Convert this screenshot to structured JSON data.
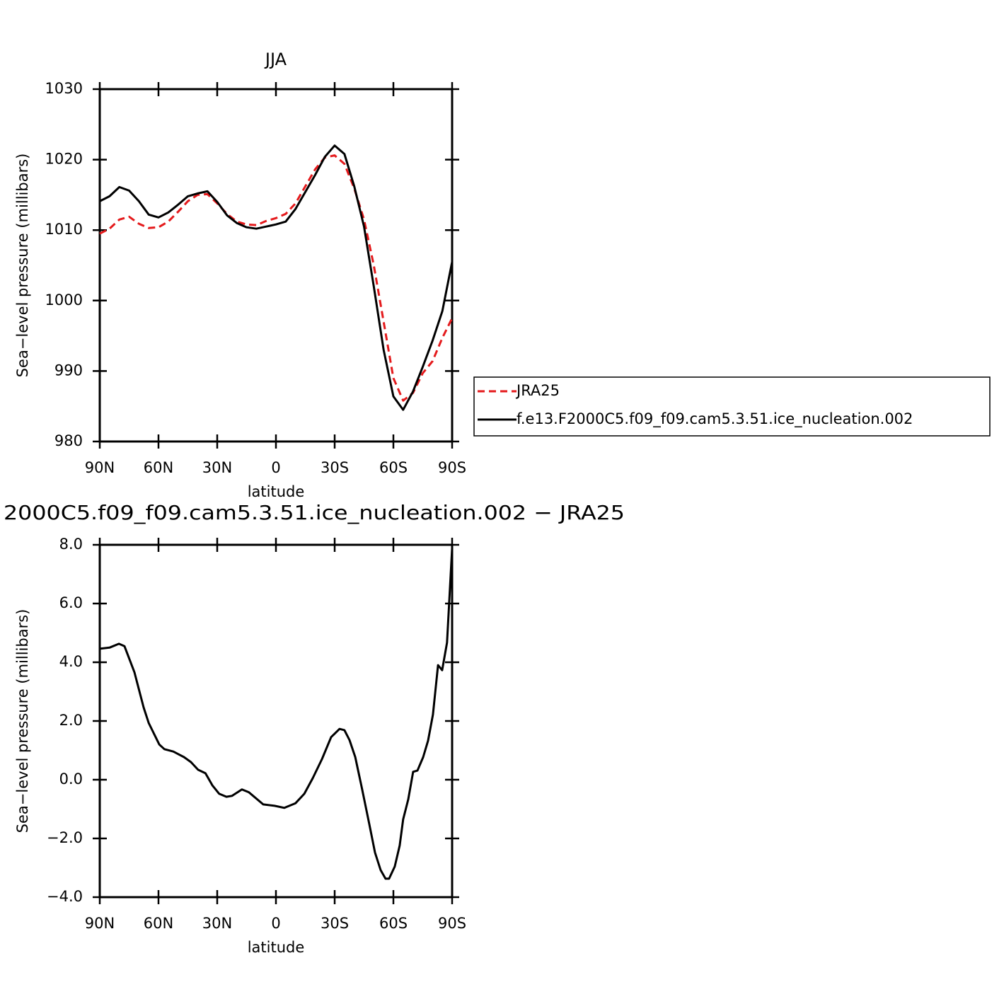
{
  "chart_data": [
    {
      "type": "line",
      "title": "JJA",
      "x_label": "latitude",
      "y_label": "Sea−level pressure (millibars)",
      "x": [
        90,
        85,
        80,
        75,
        70,
        65,
        60,
        55,
        50,
        45,
        40,
        35,
        30,
        25,
        20,
        15,
        10,
        5,
        0,
        -5,
        -10,
        -15,
        -20,
        -25,
        -30,
        -35,
        -40,
        -45,
        -50,
        -55,
        -60,
        -65,
        -70,
        -75,
        -80,
        -85,
        -90
      ],
      "series": [
        {
          "name": "JRA25",
          "color": "#e41a1c",
          "style": "dashed",
          "values": [
            1009.5,
            1010.2,
            1011.5,
            1011.9,
            1010.9,
            1010.3,
            1010.4,
            1011.2,
            1012.6,
            1014.1,
            1015.0,
            1015.1,
            1013.8,
            1012.3,
            1011.2,
            1010.8,
            1010.7,
            1011.3,
            1011.7,
            1012.3,
            1013.8,
            1016.2,
            1018.6,
            1020.3,
            1020.6,
            1019.4,
            1015.9,
            1011.5,
            1005.0,
            997.0,
            989.0,
            985.8,
            986.9,
            989.7,
            991.4,
            994.7,
            997.5
          ]
        },
        {
          "name": "f.e13.F2000C5.f09_f09.cam5.3.51.ice_nucleation.002",
          "color": "#000000",
          "style": "solid",
          "values": [
            1014.1,
            1014.8,
            1016.1,
            1015.6,
            1014.1,
            1012.2,
            1011.8,
            1012.5,
            1013.6,
            1014.8,
            1015.2,
            1015.5,
            1014.0,
            1012.1,
            1011.0,
            1010.4,
            1010.2,
            1010.5,
            1010.8,
            1011.2,
            1013.0,
            1015.4,
            1017.8,
            1020.4,
            1022.0,
            1020.8,
            1016.2,
            1010.5,
            1002.0,
            993.0,
            986.4,
            984.5,
            987.1,
            990.6,
            994.3,
            998.5,
            1005.5
          ]
        }
      ],
      "xlim": [
        90,
        -90
      ],
      "xticks": [
        {
          "value": 90,
          "label": "90N"
        },
        {
          "value": 60,
          "label": "60N"
        },
        {
          "value": 30,
          "label": "30N"
        },
        0,
        {
          "value": -30,
          "label": "30S"
        },
        {
          "value": -60,
          "label": "60S"
        },
        {
          "value": -90,
          "label": "90S"
        }
      ],
      "ylim": [
        980,
        1030
      ],
      "yticks": [
        980,
        990,
        1000,
        1010,
        1020,
        1030
      ],
      "legend": "outside right"
    },
    {
      "type": "line",
      "title": "2000C5.f09_f09.cam5.3.51.ice_nucleation.002 − JRA25",
      "x_label": "latitude",
      "y_label": "Sea−level pressure (millibars)",
      "x": [
        90,
        85,
        80.2,
        77.4,
        72.3,
        67.6,
        65,
        59.6,
        57,
        52.4,
        47,
        43.4,
        39.8,
        36,
        32.5,
        29,
        25.3,
        22.4,
        17.4,
        13.8,
        6.5,
        0.7,
        -4.3,
        -10,
        -14.5,
        -18.8,
        -23.5,
        -28.2,
        -32.5,
        -35,
        -37.6,
        -40.5,
        -44,
        -47.7,
        -50.6,
        -53.5,
        -56,
        -57.8,
        -60.7,
        -63.2,
        -65,
        -67.6,
        -70.1,
        -72.3,
        -75.2,
        -77.7,
        -80.2,
        -82.8,
        -84.9,
        -87.4,
        -90
      ],
      "color": "#000000",
      "values": [
        4.46,
        4.5,
        4.63,
        4.55,
        3.66,
        2.46,
        1.93,
        1.2,
        1.04,
        0.96,
        0.77,
        0.6,
        0.34,
        0.22,
        -0.19,
        -0.48,
        -0.58,
        -0.55,
        -0.33,
        -0.43,
        -0.84,
        -0.89,
        -0.96,
        -0.8,
        -0.48,
        0.05,
        0.7,
        1.45,
        1.73,
        1.69,
        1.35,
        0.77,
        -0.31,
        -1.52,
        -2.48,
        -3.08,
        -3.37,
        -3.37,
        -2.96,
        -2.24,
        -1.35,
        -0.67,
        0.27,
        0.31,
        0.77,
        1.33,
        2.22,
        3.9,
        3.73,
        4.67,
        7.88
      ],
      "xlim": [
        90,
        -90
      ],
      "xticks": [
        {
          "value": 90,
          "label": "90N"
        },
        {
          "value": 60,
          "label": "60N"
        },
        {
          "value": 30,
          "label": "30N"
        },
        0,
        {
          "value": -30,
          "label": "30S"
        },
        {
          "value": -60,
          "label": "60S"
        },
        {
          "value": -90,
          "label": "90S"
        }
      ],
      "ylim": [
        -4,
        8
      ],
      "yticks": [
        {
          "value": -4,
          "label": "−4.0"
        },
        {
          "value": -2,
          "label": "−2.0"
        },
        {
          "value": 0,
          "label": "0.0"
        },
        {
          "value": 2,
          "label": "2.0"
        },
        {
          "value": 4,
          "label": "4.0"
        },
        {
          "value": 6,
          "label": "6.0"
        },
        {
          "value": 8,
          "label": "8.0"
        }
      ]
    }
  ]
}
